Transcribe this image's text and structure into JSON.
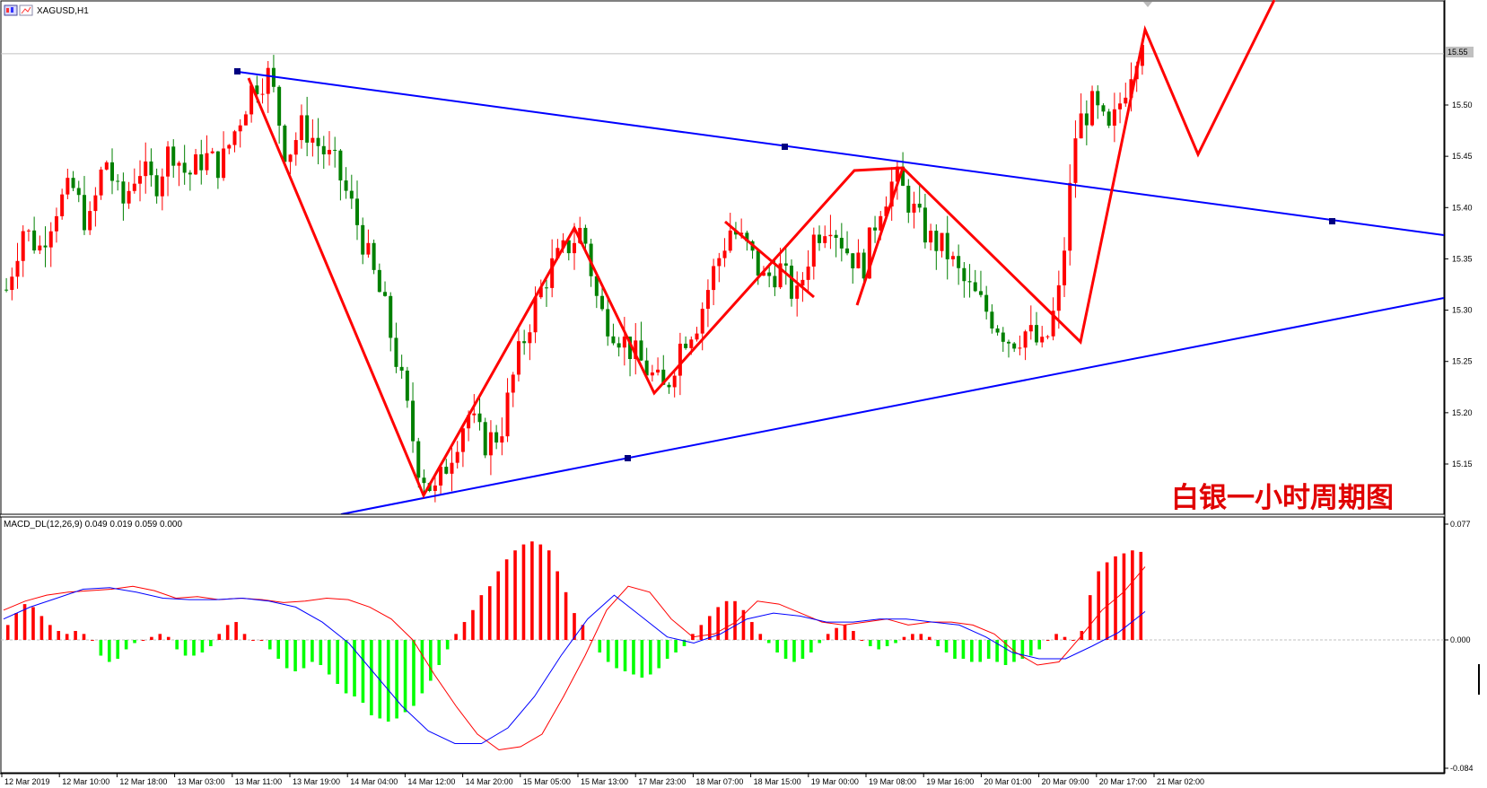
{
  "window": {
    "symbol_title": "XAGUSD,H1",
    "indicator_label": "MACD_DL(12,26,9) 0.049 0.019 0.059 0.000",
    "overlay_text": "白银一小时周期图"
  },
  "colors": {
    "background": "#ffffff",
    "bull_candle": "#ff0000",
    "bear_candle": "#008000",
    "trendline": "#0000ff",
    "zigzag": "#ff0000",
    "hist_positive": "#ff0000",
    "hist_negative": "#00ff00",
    "macd_line": "#ff0000",
    "signal_line": "#0000ff",
    "grid": "#c8c8c8"
  },
  "price_axis": {
    "labels": [
      "15.50",
      "15.45",
      "15.40",
      "15.35",
      "15.30",
      "15.25",
      "15.20",
      "15.15"
    ],
    "current_price": "15.55"
  },
  "macd_axis": {
    "labels": [
      "0.077",
      "0.000",
      "-0.084"
    ]
  },
  "time_axis": {
    "labels": [
      "12 Mar 2019",
      "12 Mar 10:00",
      "12 Mar 18:00",
      "13 Mar 03:00",
      "13 Mar 11:00",
      "13 Mar 19:00",
      "14 Mar 04:00",
      "14 Mar 12:00",
      "14 Mar 20:00",
      "15 Mar 05:00",
      "15 Mar 13:00",
      "17 Mar 23:00",
      "18 Mar 07:00",
      "18 Mar 15:00",
      "19 Mar 00:00",
      "19 Mar 08:00",
      "19 Mar 16:00",
      "20 Mar 01:00",
      "20 Mar 09:00",
      "20 Mar 17:00",
      "21 Mar 02:00"
    ]
  },
  "chart_data": [
    {
      "type": "candlestick",
      "series_name": "XAGUSD,H1",
      "ylim": [
        15.1,
        15.6
      ],
      "key_levels": {
        "current_price": 15.55
      },
      "trendlines": [
        {
          "name": "resistance",
          "points": [
            [
              0,
              15.53
            ],
            [
              1,
              15.37
            ]
          ]
        },
        {
          "name": "support",
          "points": [
            [
              0,
              15.06
            ],
            [
              1,
              15.31
            ]
          ]
        }
      ],
      "zigzag_pivots_price": [
        15.53,
        15.12,
        15.38,
        15.22,
        15.44,
        15.26,
        15.57,
        15.45,
        15.62
      ],
      "price_path": [
        15.32,
        15.38,
        15.36,
        15.4,
        15.42,
        15.38,
        15.45,
        15.4,
        15.44,
        15.42,
        15.46,
        15.43,
        15.45,
        15.44,
        15.48,
        15.52,
        15.53,
        15.45,
        15.48,
        15.46,
        15.44,
        15.4,
        15.35,
        15.3,
        15.23,
        15.15,
        15.12,
        15.16,
        15.2,
        15.17,
        15.18,
        15.25,
        15.3,
        15.34,
        15.36,
        15.38,
        15.3,
        15.28,
        15.26,
        15.24,
        15.22,
        15.27,
        15.29,
        15.34,
        15.38,
        15.36,
        15.33,
        15.34,
        15.31,
        15.37,
        15.39,
        15.36,
        15.34,
        15.4,
        15.43,
        15.4,
        15.37,
        15.36,
        15.33,
        15.31,
        15.29,
        15.27,
        15.28,
        15.26,
        15.32,
        15.48,
        15.5,
        15.47,
        15.52,
        15.57
      ]
    },
    {
      "type": "bar",
      "series_name": "MACD_DL(12,26,9)",
      "ylim": [
        -0.084,
        0.077
      ],
      "params": [
        12,
        26,
        9
      ],
      "values_shown": {
        "macd": 0.049,
        "signal": 0.019,
        "histogram": 0.059,
        "zero": 0.0
      },
      "histogram": [
        0.01,
        0.018,
        0.024,
        0.022,
        0.016,
        0.01,
        0.006,
        0.004,
        0.006,
        0.004,
        0.0,
        -0.01,
        -0.014,
        -0.012,
        -0.006,
        -0.002,
        0.0,
        0.002,
        0.004,
        0.002,
        -0.006,
        -0.01,
        -0.01,
        -0.008,
        -0.004,
        0.004,
        0.01,
        0.012,
        0.004,
        0.0,
        0.0,
        -0.006,
        -0.012,
        -0.018,
        -0.02,
        -0.018,
        -0.014,
        -0.016,
        -0.022,
        -0.028,
        -0.034,
        -0.036,
        -0.04,
        -0.048,
        -0.05,
        -0.052,
        -0.05,
        -0.046,
        -0.042,
        -0.034,
        -0.026,
        -0.016,
        -0.006,
        0.004,
        0.012,
        0.02,
        0.03,
        0.036,
        0.046,
        0.054,
        0.06,
        0.064,
        0.066,
        0.064,
        0.06,
        0.046,
        0.032,
        0.018,
        0.01,
        0.0,
        -0.008,
        -0.014,
        -0.018,
        -0.02,
        -0.022,
        -0.024,
        -0.022,
        -0.018,
        -0.012,
        -0.008,
        -0.004,
        0.004,
        0.01,
        0.016,
        0.022,
        0.026,
        0.026,
        0.02,
        0.012,
        0.004,
        -0.002,
        -0.008,
        -0.012,
        -0.014,
        -0.012,
        -0.008,
        -0.002,
        0.004,
        0.008,
        0.01,
        0.006,
        0.0,
        -0.004,
        -0.006,
        -0.004,
        -0.002,
        0.002,
        0.004,
        0.004,
        0.002,
        -0.004,
        -0.008,
        -0.012,
        -0.012,
        -0.014,
        -0.014,
        -0.012,
        -0.014,
        -0.016,
        -0.014,
        -0.012,
        -0.01,
        -0.006,
        0.0,
        0.004,
        0.002,
        0.0,
        0.006,
        0.03,
        0.046,
        0.052,
        0.056,
        0.058,
        0.06,
        0.059
      ],
      "macd_line": [
        0.02,
        0.026,
        0.03,
        0.032,
        0.033,
        0.034,
        0.036,
        0.033,
        0.028,
        0.029,
        0.027,
        0.028,
        0.027,
        0.025,
        0.026,
        0.028,
        0.027,
        0.022,
        0.014,
        0.0,
        -0.022,
        -0.042,
        -0.06,
        -0.07,
        -0.068,
        -0.06,
        -0.036,
        -0.01,
        0.02,
        0.036,
        0.032,
        0.014,
        0.002,
        0.004,
        0.012,
        0.026,
        0.024,
        0.018,
        0.012,
        0.01,
        0.012,
        0.014,
        0.01,
        0.012,
        0.012,
        0.01,
        0.004,
        -0.008,
        -0.016,
        -0.014,
        0.002,
        0.02,
        0.032,
        0.049
      ],
      "signal_line": [
        0.014,
        0.022,
        0.028,
        0.034,
        0.035,
        0.032,
        0.028,
        0.027,
        0.027,
        0.028,
        0.026,
        0.022,
        0.012,
        -0.002,
        -0.022,
        -0.042,
        -0.058,
        -0.066,
        -0.066,
        -0.056,
        -0.036,
        -0.01,
        0.014,
        0.03,
        0.016,
        0.002,
        -0.002,
        0.004,
        0.014,
        0.018,
        0.016,
        0.012,
        0.012,
        0.014,
        0.014,
        0.012,
        0.01,
        0.002,
        -0.008,
        -0.012,
        -0.012,
        -0.004,
        0.005,
        0.019
      ]
    }
  ]
}
